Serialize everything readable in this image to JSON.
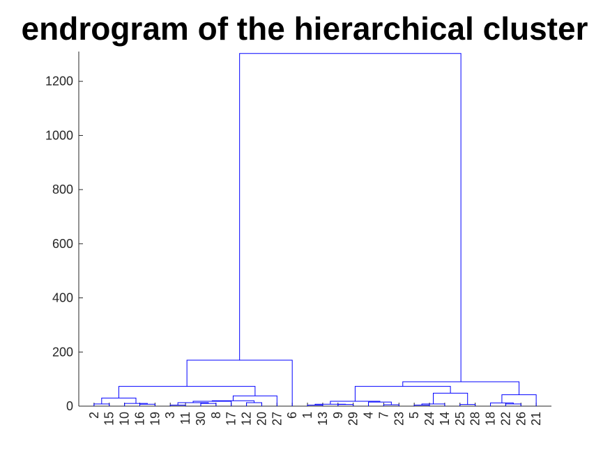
{
  "chart_data": {
    "type": "dendrogram",
    "title": "endrogram of the hierarchical cluster",
    "xlabel": "",
    "ylabel": "",
    "ylim": [
      0,
      1310
    ],
    "yticks": [
      0,
      200,
      400,
      600,
      800,
      1000,
      1200
    ],
    "line_color": "#0000ff",
    "leaf_order": [
      2,
      15,
      10,
      16,
      19,
      3,
      11,
      30,
      8,
      17,
      12,
      20,
      27,
      6,
      1,
      13,
      9,
      29,
      4,
      7,
      23,
      5,
      24,
      14,
      25,
      28,
      18,
      22,
      26,
      21
    ],
    "merges": [
      {
        "a": "L2",
        "b": "L15",
        "height": 8
      },
      {
        "a": "L16",
        "b": "L19",
        "height": 7
      },
      {
        "a": "L10",
        "b": "M2",
        "height": 10
      },
      {
        "a": "M1",
        "b": "M3",
        "height": 30
      },
      {
        "a": "L3",
        "b": "L11",
        "height": 4
      },
      {
        "a": "L30",
        "b": "L8",
        "height": 10
      },
      {
        "a": "M5",
        "b": "M6",
        "height": 13
      },
      {
        "a": "M7",
        "b": "L17",
        "height": 18
      },
      {
        "a": "L12",
        "b": "L20",
        "height": 13
      },
      {
        "a": "M8",
        "b": "M9",
        "height": 20
      },
      {
        "a": "M10",
        "b": "L27",
        "height": 38
      },
      {
        "a": "M4",
        "b": "M11",
        "height": 73
      },
      {
        "a": "M12",
        "b": "L6",
        "height": 170
      },
      {
        "a": "L1",
        "b": "L13",
        "height": 4
      },
      {
        "a": "L9",
        "b": "L29",
        "height": 6
      },
      {
        "a": "M14",
        "b": "M15",
        "height": 7
      },
      {
        "a": "L7",
        "b": "L23",
        "height": 5
      },
      {
        "a": "L4",
        "b": "M17",
        "height": 15
      },
      {
        "a": "M16",
        "b": "M18",
        "height": 18
      },
      {
        "a": "L5",
        "b": "L24",
        "height": 4
      },
      {
        "a": "M20",
        "b": "L14",
        "height": 8
      },
      {
        "a": "L25",
        "b": "L28",
        "height": 6
      },
      {
        "a": "M21",
        "b": "M22",
        "height": 48
      },
      {
        "a": "M19",
        "b": "M23",
        "height": 73
      },
      {
        "a": "L22",
        "b": "L26",
        "height": 8
      },
      {
        "a": "L18",
        "b": "M25",
        "height": 12
      },
      {
        "a": "M26",
        "b": "L21",
        "height": 42
      },
      {
        "a": "M24",
        "b": "M27",
        "height": 90
      },
      {
        "a": "M13",
        "b": "M28",
        "height": 1303
      }
    ]
  }
}
